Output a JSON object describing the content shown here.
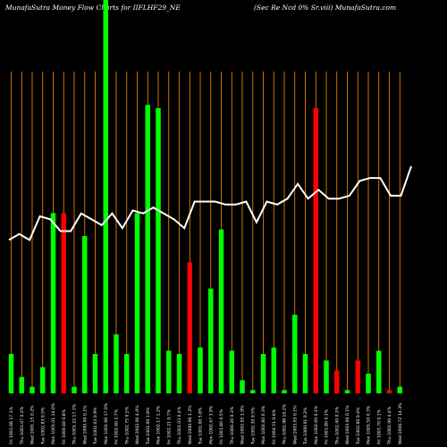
{
  "title_left": "MunafaSutra  Money Flow  Charts for IIFLHF29_NE",
  "title_right": "(Sec Re    Ncd 0% Sr.viii) MunafaSutra.com",
  "colors": {
    "background": "#000000",
    "up": "#00ff00",
    "down": "#ff0000",
    "vline": "#ff8c00",
    "line": "#ffffff"
  },
  "chart_data": {
    "type": "bar",
    "categories": [
      "Fri 1003.68 17.1%",
      "Thu 1003.07 0.2%",
      "Wed 1001.15 0.2%",
      "Tue 1002.83 0.5%",
      "Mon 1001.01 14.0%",
      "Fri 1000.60 0.8%",
      "Thu 1001.22 17.3%",
      "Wed 1000.00 0.1%",
      "Tue 1002.03 0.9%",
      "Mon 1001.96 17.0%",
      "Fri 1002.60 2.7%",
      "Thu 1002.75 0.5%",
      "Wed 1002.00 4.0%",
      "Tue 1001.00 1.8%",
      "Mon 1002.17 1.2%",
      "Fri 1002.21 0.7%",
      "Thu 1001.03 0.4%",
      "Wed 1000.90 1.2%",
      "Tue 1001.00 5.8%",
      "Mon 1002.67 3.9%",
      "Fri 1001.80 0.5%",
      "Thu 1000.20 0.3%",
      "Wed 1002.05 1.0%",
      "Tue 1002.30 0.5%",
      "Mon 1002.80 0.3%",
      "Fri 1004.51 0.6%",
      "Thu 1002.98 10.2%",
      "Wed 1003.03 0.1%",
      "Tue 1000.91 0.2%",
      "Mon 1002.00 0.1%",
      "Fri 1001.80 0.1%",
      "Thu 1002.40 0.3%",
      "Wed 1003.00 0.1%",
      "Tue 1002.60 0.4%",
      "Mon 1001.50 0.3%",
      "Fri 1003.70 0.1%",
      "Thu 1002.90 4.4%",
      "Wed 1000.72 14.3%"
    ],
    "values": [
      12,
      5,
      2,
      8,
      55,
      55,
      2,
      48,
      12,
      120,
      18,
      12,
      55,
      88,
      87,
      13,
      12,
      40,
      14,
      32,
      50,
      13,
      4,
      1,
      12,
      14,
      1,
      24,
      12,
      87,
      10,
      7,
      1,
      10,
      6,
      13,
      1,
      2
    ],
    "direction": [
      "up",
      "up",
      "up",
      "up",
      "up",
      "down",
      "up",
      "up",
      "up",
      "up",
      "up",
      "up",
      "up",
      "up",
      "up",
      "up",
      "up",
      "down",
      "up",
      "up",
      "up",
      "up",
      "up",
      "up",
      "up",
      "up",
      "up",
      "up",
      "up",
      "down",
      "up",
      "down",
      "up",
      "down",
      "up",
      "up",
      "down",
      "up"
    ],
    "price_line": [
      52,
      54,
      52,
      60,
      59,
      55,
      55,
      61,
      59,
      57,
      61,
      56,
      62,
      61,
      63,
      61,
      59,
      56,
      65,
      65,
      65,
      64,
      64,
      65,
      58,
      65,
      64,
      66,
      71,
      66,
      69,
      66,
      66,
      67,
      72,
      73,
      73,
      67,
      67,
      77
    ],
    "ylim": [
      0,
      120
    ]
  }
}
